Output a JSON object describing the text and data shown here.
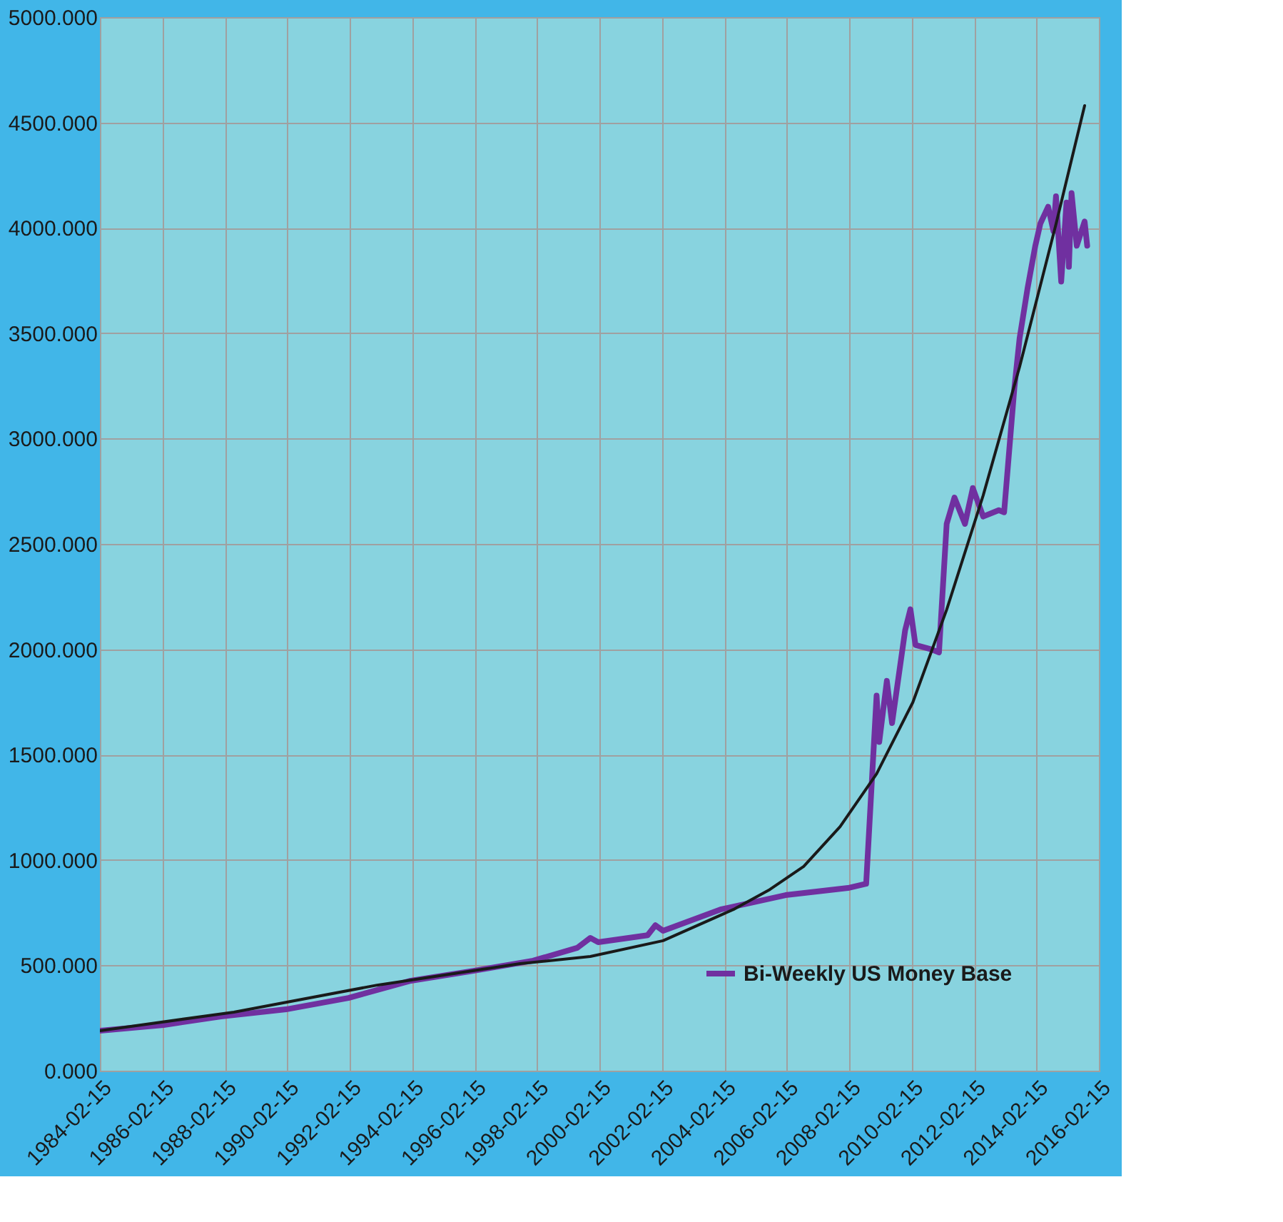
{
  "chart_data": {
    "type": "line",
    "x": [
      "1984-02-15",
      "1986-03",
      "1988-01",
      "1990-02",
      "1992-02",
      "1994-02",
      "1996-02",
      "1998-01",
      "1999-06",
      "1999-11",
      "2000-02",
      "2001-09",
      "2001-12",
      "2002-03",
      "2004-01",
      "2006-02",
      "2008-02",
      "2008-09",
      "2009-01",
      "2009-02",
      "2009-05",
      "2009-07",
      "2009-12",
      "2010-02",
      "2010-04",
      "2010-10",
      "2011-01",
      "2011-04",
      "2011-07",
      "2011-11",
      "2012-02",
      "2012-06",
      "2012-12",
      "2013-02",
      "2013-06",
      "2013-08",
      "2013-11",
      "2014-02",
      "2014-04",
      "2014-07",
      "2014-09",
      "2014-10",
      "2014-12",
      "2015-02",
      "2015-03",
      "2015-04",
      "2015-06",
      "2015-09",
      "2015-10"
    ],
    "series": [
      {
        "name": "Bi-Weekly US Money Base",
        "color": "#7030a0",
        "values": [
          190,
          217,
          257,
          291,
          345,
          427,
          474,
          522,
          583,
          630,
          610,
          643,
          690,
          664,
          765,
          833,
          867,
          887,
          1780,
          1560,
          1850,
          1650,
          2090,
          2190,
          2020,
          2000,
          1985,
          2595,
          2720,
          2595,
          2765,
          2630,
          2660,
          2650,
          3240,
          3475,
          3710,
          3915,
          4020,
          4100,
          3985,
          4150,
          3745,
          4120,
          3815,
          4165,
          3915,
          4030,
          3915
        ]
      },
      {
        "type": "line",
        "color": "#1a1a1a",
        "x": [
          "1984-02-15",
          "1988-06",
          "1993-01",
          "1997-08",
          "1999-11",
          "2002-03",
          "2004-06",
          "2005-08",
          "2006-09",
          "2007-11",
          "2009-01",
          "2010-03",
          "2011-04",
          "2012-06",
          "2013-08",
          "2014-10",
          "2015-09"
        ],
        "values": [
          190,
          278,
          406,
          508,
          542,
          617,
          765,
          860,
          969,
          1158,
          1409,
          1748,
          2188,
          2730,
          3340,
          4018,
          4580
        ]
      }
    ],
    "xlim": [
      "1984-02-15",
      "2016-02-15"
    ],
    "xticks": [
      "1984-02-15",
      "1986-02-15",
      "1988-02-15",
      "1990-02-15",
      "1992-02-15",
      "1994-02-15",
      "1996-02-15",
      "1998-02-15",
      "2000-02-15",
      "2002-02-15",
      "2004-02-15",
      "2006-02-15",
      "2008-02-15",
      "2010-02-15",
      "2012-02-15",
      "2014-02-15",
      "2016-02-15"
    ],
    "ylim": [
      0,
      5000
    ],
    "yticks": [
      {
        "value": 0,
        "label": "0.000"
      },
      {
        "value": 500,
        "label": "500.000"
      },
      {
        "value": 1000,
        "label": "1000.000"
      },
      {
        "value": 1500,
        "label": "1500.000"
      },
      {
        "value": 2000,
        "label": "2000.000"
      },
      {
        "value": 2500,
        "label": "2500.000"
      },
      {
        "value": 3000,
        "label": "3000.000"
      },
      {
        "value": 3500,
        "label": "3500.000"
      },
      {
        "value": 4000,
        "label": "4000.000"
      },
      {
        "value": 4500,
        "label": "4500.000"
      },
      {
        "value": 5000,
        "label": "5000.000"
      }
    ],
    "grid": true,
    "legend": "bottom right",
    "marker": "none",
    "line_style": "solid"
  }
}
